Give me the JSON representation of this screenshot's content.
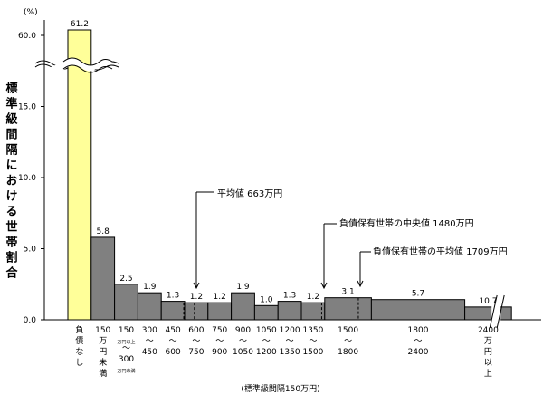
{
  "chart_data": {
    "type": "bar",
    "unit": "(%)",
    "ylabel": "標準級間隔における世帯割合",
    "xlabel": "(標準級間隔150万円)",
    "yticks": [
      "0.0",
      "5.0",
      "10.0",
      "15.0",
      "60.0"
    ],
    "ylim": [
      0,
      17.5
    ],
    "axis_break": {
      "from": 17.5,
      "to": 60.0
    },
    "categories": [
      {
        "name": "负債なし",
        "lines": [
          "負",
          "債",
          "な",
          "し"
        ],
        "value": 61.2,
        "label": "61.2",
        "width": 1,
        "color": "#ffff99",
        "highlight": true
      },
      {
        "name": "150万円未満",
        "lines": [
          "150",
          "万",
          "円",
          "未",
          "満"
        ],
        "value": 5.8,
        "label": "5.8",
        "width": 1
      },
      {
        "name": "150万円以上～300万円未満",
        "lines": [
          "150",
          "万円以上",
          "～",
          "300",
          "万円未満"
        ],
        "small": [
          1,
          4
        ],
        "value": 2.5,
        "label": "2.5",
        "width": 1
      },
      {
        "name": "300～450",
        "lines": [
          "300",
          "～",
          "450"
        ],
        "value": 1.9,
        "label": "1.9",
        "width": 1
      },
      {
        "name": "450～600",
        "lines": [
          "450",
          "～",
          "600"
        ],
        "value": 1.3,
        "label": "1.3",
        "width": 1
      },
      {
        "name": "600～750",
        "lines": [
          "600",
          "～",
          "750"
        ],
        "value": 1.2,
        "label": "1.2",
        "width": 1
      },
      {
        "name": "750～900",
        "lines": [
          "750",
          "～",
          "900"
        ],
        "value": 1.2,
        "label": "1.2",
        "width": 1
      },
      {
        "name": "900～1050",
        "lines": [
          "900",
          "～",
          "1050"
        ],
        "value": 1.9,
        "label": "1.9",
        "width": 1
      },
      {
        "name": "1050～1200",
        "lines": [
          "1050",
          "～",
          "1200"
        ],
        "value": 1.0,
        "label": "1.0",
        "width": 1
      },
      {
        "name": "1200～1350",
        "lines": [
          "1200",
          "～",
          "1350"
        ],
        "value": 1.3,
        "label": "1.3",
        "width": 1
      },
      {
        "name": "1350～1500",
        "lines": [
          "1350",
          "～",
          "1500"
        ],
        "value": 1.2,
        "label": "1.2",
        "width": 1
      },
      {
        "name": "1500～1800",
        "lines": [
          "1500",
          "～",
          "1800"
        ],
        "value": 1.55,
        "label": "3.1",
        "width": 2
      },
      {
        "name": "1800～2400",
        "lines": [
          "1800",
          "～",
          "2400"
        ],
        "value": 1.42,
        "label": "5.7",
        "width": 4
      },
      {
        "name": "2400万円以上",
        "lines": [
          "2400",
          "万",
          "円",
          "以",
          "上"
        ],
        "value": 0.9,
        "label": "10.7",
        "width": 2,
        "break": true
      }
    ],
    "annotations": [
      {
        "text": "平均値 663万円",
        "value_man_yen": 663
      },
      {
        "text": "負債保有世帯の中央値 1480万円",
        "value_man_yen": 1480
      },
      {
        "text": "負債保有世帯の平均値 1709万円",
        "value_man_yen": 1709
      }
    ],
    "colors": {
      "bar": "#808080",
      "highlight": "#ffff99",
      "outline": "#000000"
    }
  }
}
